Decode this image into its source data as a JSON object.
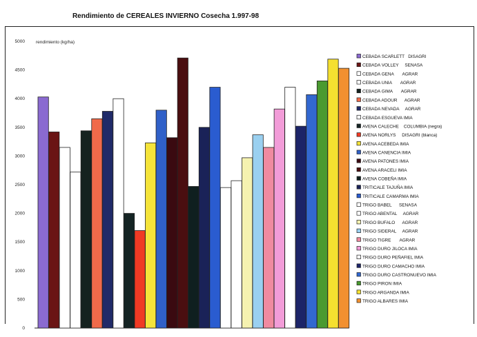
{
  "chart_data": {
    "type": "bar",
    "title": "Rendimiento de CEREALES INVIERNO  Cosecha 1.997-98",
    "ylabel": "rendimiento (kg/ha)",
    "xlabel": "",
    "ylim": [
      0,
      5000
    ],
    "yticks": [
      "0",
      "500",
      "1000",
      "1500",
      "2000",
      "2500",
      "3000",
      "3500",
      "4000",
      "4500",
      "5000"
    ],
    "grid": false,
    "legend_position": "right",
    "series": [
      {
        "name": "CEBADA SCARLETT   DISAGRI",
        "value": 4030,
        "color": "#8a6ad0"
      },
      {
        "name": "CEBADA VOLLEY     SENASA",
        "value": 3420,
        "color": "#6a1414"
      },
      {
        "name": "CEBADA GENA       AGRAR",
        "value": 3150,
        "color": "#ffffff"
      },
      {
        "name": "CEBADA UNIA       AGRAR",
        "value": 2720,
        "color": "#ffffff"
      },
      {
        "name": "CEBADA GIMA       AGRAR",
        "value": 3440,
        "color": "#15221f"
      },
      {
        "name": "CEBADA ADOUR      AGRAR",
        "value": 3650,
        "color": "#f06a4a"
      },
      {
        "name": "CEBADA NEVADA     AGRAR",
        "value": 3780,
        "color": "#202a68"
      },
      {
        "name": "CEBADA ESGUEVA IMIA",
        "value": 4000,
        "color": "#ffffff"
      },
      {
        "name": "AVENA CALECHE    COLUMBIA (negra)",
        "value": 2000,
        "color": "#152424"
      },
      {
        "name": "AVENA NORLYS     DISAGRI (blanca)",
        "value": 1700,
        "color": "#f03a24"
      },
      {
        "name": "AVENA ACEBEDA IMIA",
        "value": 3230,
        "color": "#f5e43a"
      },
      {
        "name": "AVENA CANENCIA IMIA",
        "value": 3800,
        "color": "#3060c8"
      },
      {
        "name": "AVENA PATONES IMIA",
        "value": 3320,
        "color": "#3a0a10"
      },
      {
        "name": "AVENA ARACELI IMIA",
        "value": 4710,
        "color": "#4a0e10"
      },
      {
        "name": "AVENA COBEÑA IMIA",
        "value": 2470,
        "color": "#0f1f1f"
      },
      {
        "name": "TRITICALE TAJUÑA IMIA",
        "value": 3500,
        "color": "#1a2258"
      },
      {
        "name": "TRITICALE CAMARMA IMIA",
        "value": 4200,
        "color": "#2a5cd0"
      },
      {
        "name": "TRIGO BABEL      SENASA",
        "value": 2450,
        "color": "#ffffff"
      },
      {
        "name": "TRIGO ABENTAL     AGRAR",
        "value": 2570,
        "color": "#ffffff"
      },
      {
        "name": "TRIGO BUFALO      AGRAR",
        "value": 2970,
        "color": "#f5f2b0"
      },
      {
        "name": "TRIGO SIDERAL     AGRAR",
        "value": 3370,
        "color": "#9ad0f0"
      },
      {
        "name": "TRIGO TIGRE       AGRAR",
        "value": 3150,
        "color": "#f08aa0"
      },
      {
        "name": "TRIGO DURO JILOCA IMIA",
        "value": 3820,
        "color": "#f29cd8"
      },
      {
        "name": "TRIGO DURO PEÑAFIEL IMIA",
        "value": 4200,
        "color": "#ffffff"
      },
      {
        "name": "TRIGO DURO CAMACHO IMIA",
        "value": 3520,
        "color": "#1c2468"
      },
      {
        "name": "TRIGO DURO CASTRONUEVO IMIA",
        "value": 4070,
        "color": "#3268d0"
      },
      {
        "name": "TRIGO PIRON IMIA",
        "value": 4310,
        "color": "#4a9a30"
      },
      {
        "name": "TRIGO ARGANDA IMIA",
        "value": 4690,
        "color": "#f5e030"
      },
      {
        "name": "TRIGO ALBARES IMIA",
        "value": 4530,
        "color": "#f29030"
      }
    ]
  }
}
